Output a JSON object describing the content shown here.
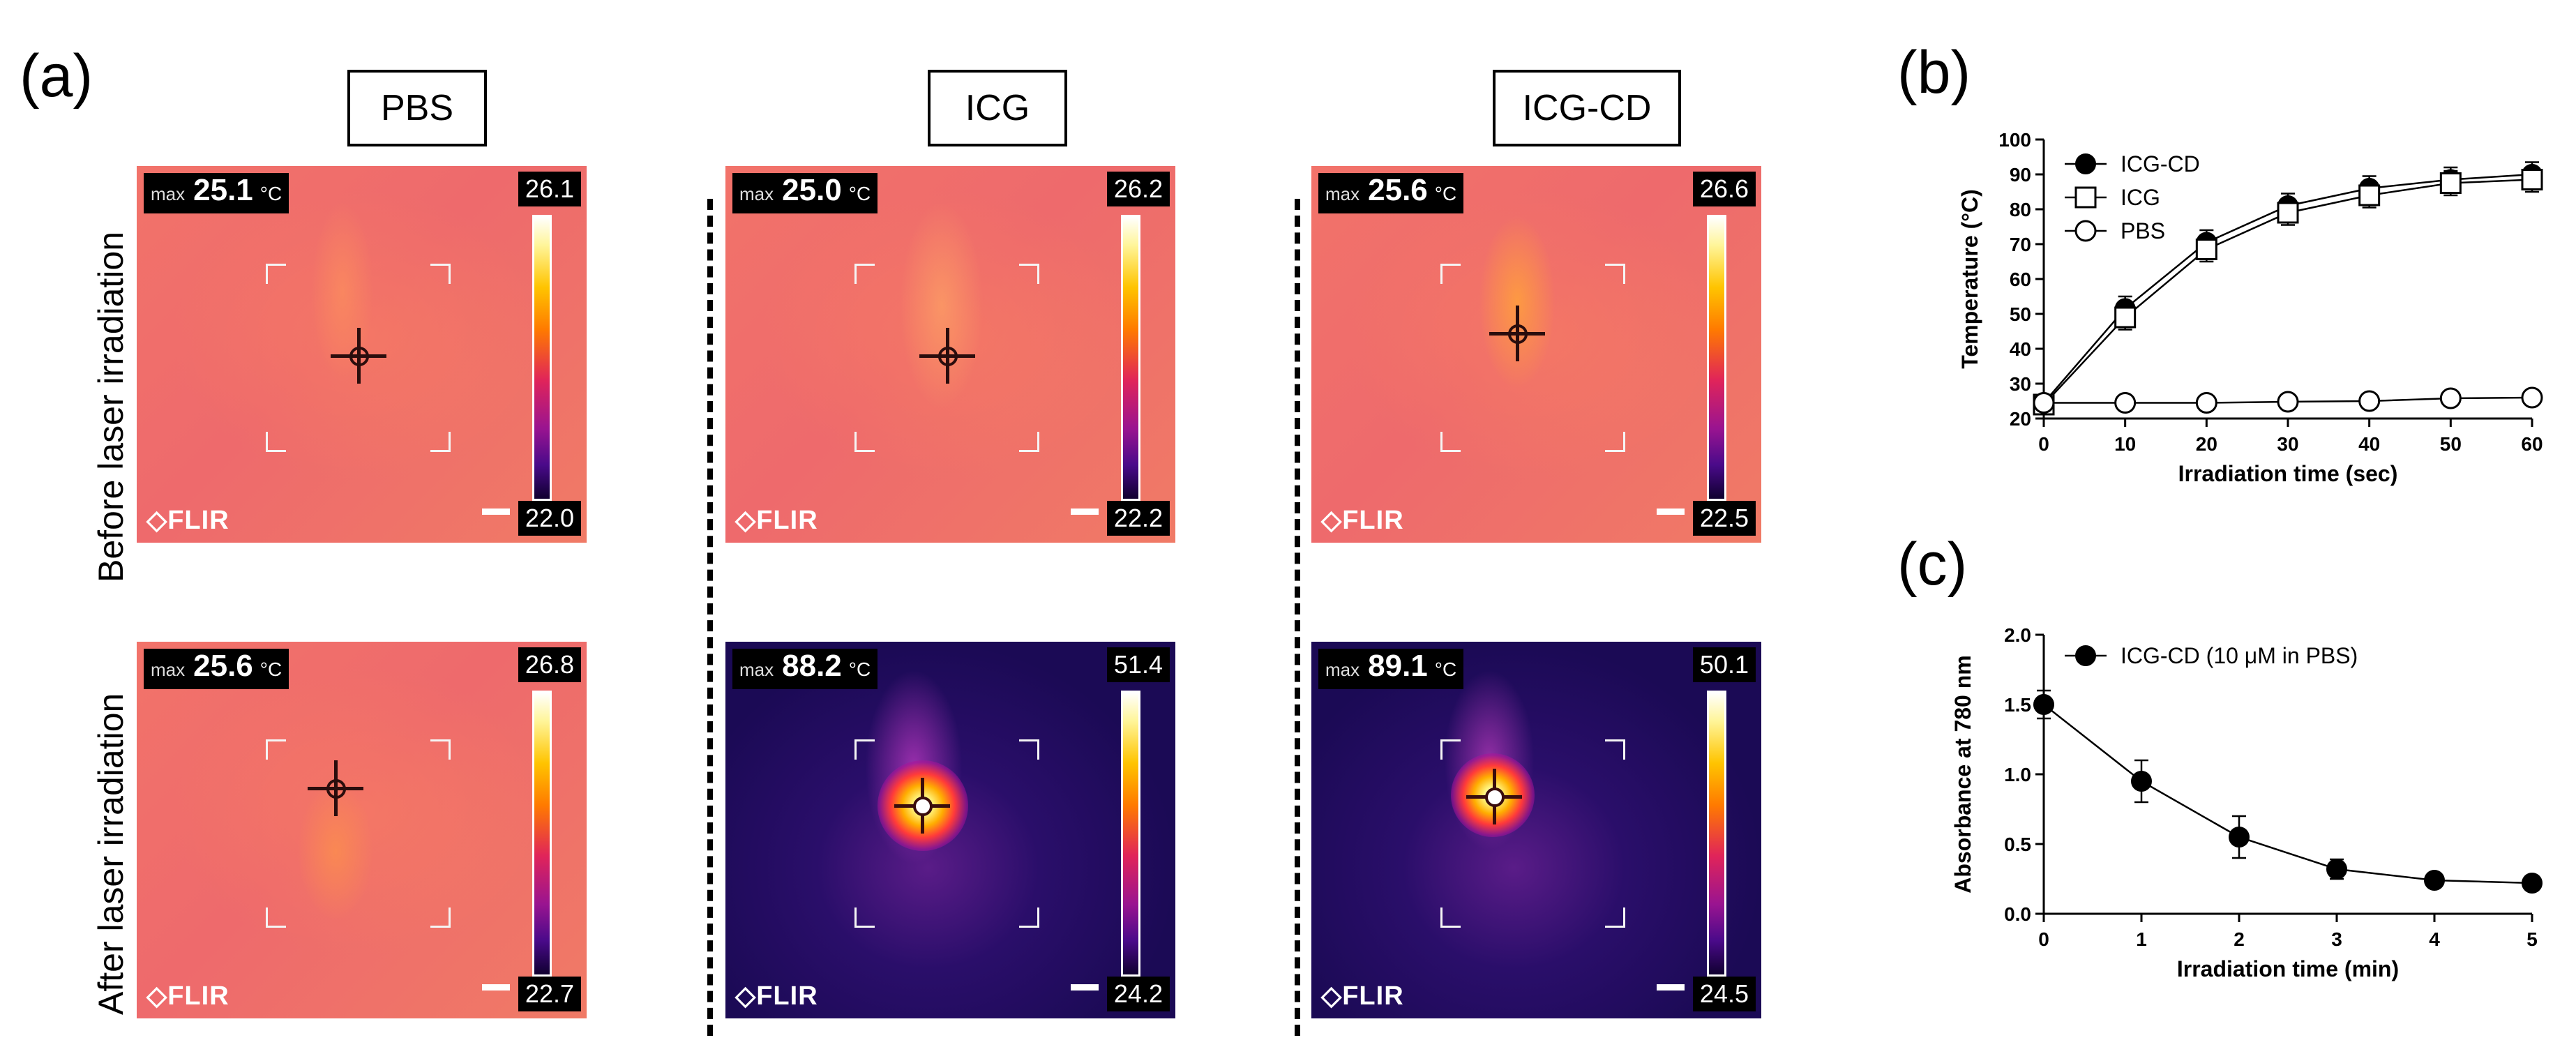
{
  "panel_labels": {
    "a": "(a)",
    "b": "(b)",
    "c": "(c)"
  },
  "columns": [
    "PBS",
    "ICG",
    "ICG-CD"
  ],
  "rows": [
    "Before laser irradiation",
    "After laser irradiation"
  ],
  "thermal_images": [
    {
      "id": "before-pbs",
      "max_label": "max",
      "max": "25.1",
      "unit": "°C",
      "scale_max": "26.1",
      "scale_min": "22.0",
      "logo": "◇FLIR",
      "theme": "warm"
    },
    {
      "id": "before-icg",
      "max_label": "max",
      "max": "25.0",
      "unit": "°C",
      "scale_max": "26.2",
      "scale_min": "22.2",
      "logo": "◇FLIR",
      "theme": "warm"
    },
    {
      "id": "before-icgcd",
      "max_label": "max",
      "max": "25.6",
      "unit": "°C",
      "scale_max": "26.6",
      "scale_min": "22.5",
      "logo": "◇FLIR",
      "theme": "warm"
    },
    {
      "id": "after-pbs",
      "max_label": "max",
      "max": "25.6",
      "unit": "°C",
      "scale_max": "26.8",
      "scale_min": "22.7",
      "logo": "◇FLIR",
      "theme": "warm"
    },
    {
      "id": "after-icg",
      "max_label": "max",
      "max": "88.2",
      "unit": "°C",
      "scale_max": "51.4",
      "scale_min": "24.2",
      "logo": "◇FLIR",
      "theme": "cold"
    },
    {
      "id": "after-icgcd",
      "max_label": "max",
      "max": "89.1",
      "unit": "°C",
      "scale_max": "50.1",
      "scale_min": "24.5",
      "logo": "◇FLIR",
      "theme": "cold"
    }
  ],
  "chart_data": [
    {
      "panel": "b",
      "type": "line",
      "xlabel": "Irradiation time (sec)",
      "ylabel": "Temperature (°C)",
      "x": [
        0,
        10,
        20,
        30,
        40,
        50,
        60
      ],
      "xlim": [
        0,
        60
      ],
      "ylim": [
        20,
        100
      ],
      "xticks": [
        "0",
        "10",
        "20",
        "30",
        "40",
        "50",
        "60"
      ],
      "yticks": [
        "20",
        "30",
        "40",
        "50",
        "60",
        "70",
        "80",
        "90",
        "100"
      ],
      "legend_position": "top-left",
      "series": [
        {
          "name": "ICG-CD",
          "marker": "filled-circle",
          "values": [
            24.5,
            51.5,
            70.5,
            81,
            86,
            88.5,
            90
          ],
          "errors": [
            2,
            3.5,
            3.5,
            3.5,
            3.5,
            3.5,
            3.5
          ]
        },
        {
          "name": "ICG",
          "marker": "open-square",
          "values": [
            24,
            49,
            68.5,
            79,
            84,
            87.5,
            88.5
          ],
          "errors": [
            2,
            3.5,
            3.5,
            3.5,
            3.5,
            3.5,
            3.5
          ]
        },
        {
          "name": "PBS",
          "marker": "open-circle",
          "values": [
            24.5,
            24.5,
            24.5,
            24.8,
            25,
            25.8,
            26
          ],
          "errors": [
            0.5,
            0.5,
            0.5,
            0.5,
            0.5,
            0.5,
            0.5
          ]
        }
      ]
    },
    {
      "panel": "c",
      "type": "line",
      "xlabel": "Irradiation time (min)",
      "ylabel": "Absorbance at 780 nm",
      "x": [
        0,
        1,
        2,
        3,
        4,
        5
      ],
      "xlim": [
        0,
        5
      ],
      "ylim": [
        0,
        2.0
      ],
      "xticks": [
        "0",
        "1",
        "2",
        "3",
        "4",
        "5"
      ],
      "yticks": [
        "0.0",
        "0.5",
        "1.0",
        "1.5",
        "2.0"
      ],
      "legend_position": "top-left",
      "series": [
        {
          "name": "ICG-CD (10 μM in PBS)",
          "marker": "filled-circle",
          "values": [
            1.5,
            0.95,
            0.55,
            0.32,
            0.24,
            0.22
          ],
          "errors": [
            0.1,
            0.15,
            0.15,
            0.07,
            0.05,
            0.05
          ]
        }
      ]
    }
  ]
}
